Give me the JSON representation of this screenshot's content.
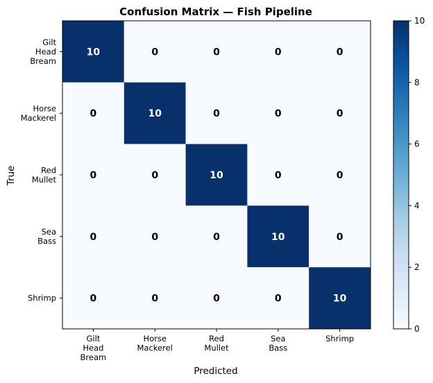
{
  "chart_data": {
    "type": "heatmap",
    "title": "Confusion Matrix — Fish Pipeline",
    "xlabel": "Predicted",
    "ylabel": "True",
    "x_categories": [
      "Gilt\nHead\nBream",
      "Horse\nMackerel",
      "Red\nMullet",
      "Sea\nBass",
      "Shrimp"
    ],
    "y_categories": [
      "Gilt\nHead\nBream",
      "Horse\nMackerel",
      "Red\nMullet",
      "Sea\nBass",
      "Shrimp"
    ],
    "values": [
      [
        10,
        0,
        0,
        0,
        0
      ],
      [
        0,
        10,
        0,
        0,
        0
      ],
      [
        0,
        0,
        10,
        0,
        0
      ],
      [
        0,
        0,
        0,
        10,
        0
      ],
      [
        0,
        0,
        0,
        0,
        10
      ]
    ],
    "colorbar": {
      "min": 0,
      "max": 10,
      "ticks": [
        0,
        2,
        4,
        6,
        8,
        10
      ],
      "colormap": "Blues"
    },
    "colors": {
      "low": "#f7fbff",
      "high": "#08306b"
    },
    "grid": false
  }
}
